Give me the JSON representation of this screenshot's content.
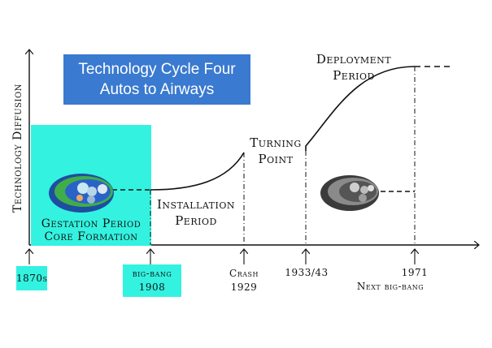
{
  "title": {
    "line1": "Technology Cycle Four",
    "line2": "Autos to Airways"
  },
  "y_axis_label": "Technology Diffusion",
  "phases": {
    "gestation_line1": "Gestation Period",
    "gestation_line2": "Core Formation",
    "installation_line1": "Installation",
    "installation_line2": "Period",
    "turning_line1": "Turning",
    "turning_line2": "Point",
    "deployment_line1": "Deployment",
    "deployment_line2": "Period"
  },
  "x_markers": {
    "m1870": "1870s",
    "bigbang_line1": "big-bang",
    "bigbang_line2": "1908",
    "crash_line1": "Crash",
    "crash_line2": "1929",
    "m1933": "1933/43",
    "m1971": "1971",
    "next_bigbang": "Next big-bang"
  },
  "colors": {
    "accent": "#33f2e0",
    "title_bg": "#3a7ad0"
  }
}
